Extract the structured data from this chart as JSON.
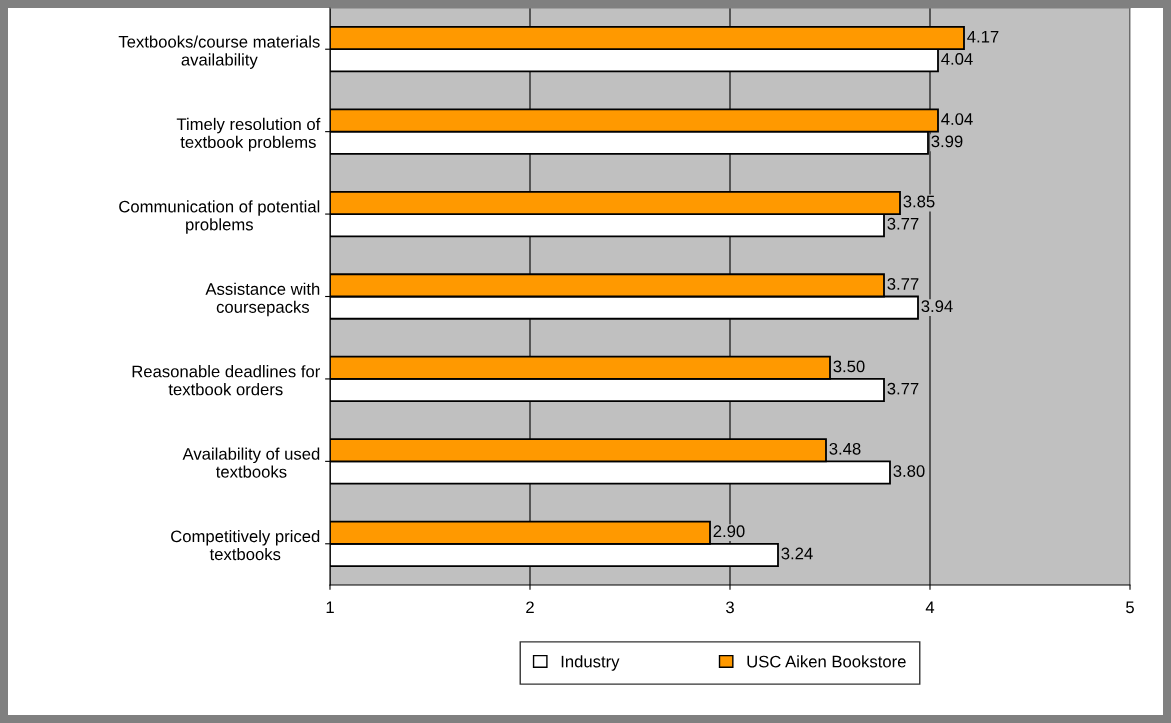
{
  "chart_data": {
    "type": "bar",
    "orientation": "horizontal",
    "categories": [
      "Textbooks/course materials\navailability",
      "Timely resolution of\ntextbook problems",
      "Communication of potential\nproblems",
      "Assistance with\ncoursepacks",
      "Reasonable deadlines for\ntextbook orders",
      "Availability of used\ntextbooks",
      "Competitively priced\ntextbooks"
    ],
    "series": [
      {
        "name": "Industry",
        "color": "#ffffff",
        "values": [
          4.04,
          3.99,
          3.77,
          3.94,
          3.77,
          3.8,
          3.24
        ],
        "value_labels": [
          "4.04",
          "3.99",
          "3.77",
          "3.94",
          "3.77",
          "3.80",
          "3.24"
        ]
      },
      {
        "name": "USC Aiken Bookstore",
        "color": "#ff9900",
        "values": [
          4.17,
          4.04,
          3.85,
          3.77,
          3.5,
          3.48,
          2.9
        ],
        "value_labels": [
          "4.17",
          "4.04",
          "3.85",
          "3.77",
          "3.50",
          "3.48",
          "2.90"
        ]
      }
    ],
    "xlim": [
      1,
      5
    ],
    "xticks": [
      1,
      2,
      3,
      4,
      5
    ],
    "grid": "x",
    "legend": "bottom"
  }
}
